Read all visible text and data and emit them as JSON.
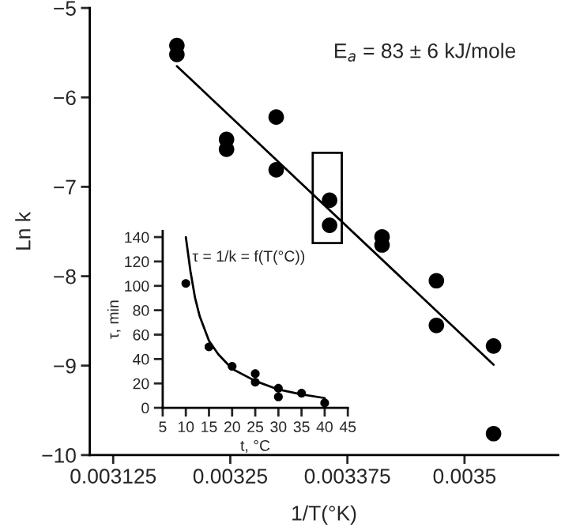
{
  "chart_data": [
    {
      "type": "scatter",
      "xlabel": "1/T(°K)",
      "ylabel": "Ln k",
      "grid": false,
      "legend": false,
      "xlim": [
        0.0031,
        0.0036
      ],
      "xticks": [
        0.003125,
        0.00325,
        0.003375,
        0.0035
      ],
      "ylim": [
        -10,
        -5
      ],
      "yticks": [
        {
          "value": -10,
          "label": "−10"
        },
        {
          "value": -9,
          "label": "−9"
        },
        {
          "value": -8,
          "label": "−8"
        },
        {
          "value": -7,
          "label": "−7"
        },
        {
          "value": -6,
          "label": "−6"
        },
        {
          "value": -5,
          "label": "−5"
        }
      ],
      "annotations": [
        "E$_{a}$ = 83 ± 6 kJ/mole"
      ],
      "series": [
        {
          "color": "#000000",
          "marker": "circle",
          "x": [
            0.003193,
            0.003193,
            0.003246,
            0.003246,
            0.003299,
            0.003299,
            0.003356,
            0.003356,
            0.003412,
            0.003412,
            0.00347,
            0.00347,
            0.003531,
            0.003531
          ],
          "values": [
            -5.42,
            -5.52,
            -6.47,
            -6.58,
            -6.22,
            -6.81,
            -7.15,
            -7.43,
            -7.56,
            -7.65,
            -8.05,
            -8.55,
            -8.78,
            -9.76
          ]
        },
        {
          "type": "line",
          "marker": "none",
          "color": "#000000",
          "x": [
            0.003193,
            0.003531
          ],
          "values": [
            -5.65,
            -8.99
          ]
        }
      ]
    },
    {
      "type": "scatter",
      "xlabel": "t, °C",
      "ylabel": "τ, min",
      "grid": false,
      "legend": false,
      "xlim": [
        5,
        45
      ],
      "xticks": [
        5,
        10,
        15,
        20,
        25,
        30,
        35,
        40,
        45
      ],
      "ylim": [
        0,
        145
      ],
      "yticks": [
        0,
        20,
        40,
        60,
        80,
        100,
        120,
        140
      ],
      "annotations": [
        "τ = 1/k = f(T(°C))"
      ],
      "series": [
        {
          "color": "#000000",
          "marker": "circle",
          "x": [
            10,
            15,
            20,
            25,
            25,
            30,
            30,
            35,
            40
          ],
          "values": [
            102,
            50,
            34,
            28,
            21,
            16,
            9,
            12,
            4
          ]
        },
        {
          "type": "line",
          "marker": "none",
          "color": "#000000",
          "x": [
            10,
            11,
            12,
            13,
            15,
            17,
            20,
            25,
            30,
            35,
            40
          ],
          "values": [
            140,
            112,
            90,
            75,
            55,
            44,
            32,
            22,
            15,
            11,
            8
          ]
        }
      ]
    }
  ]
}
